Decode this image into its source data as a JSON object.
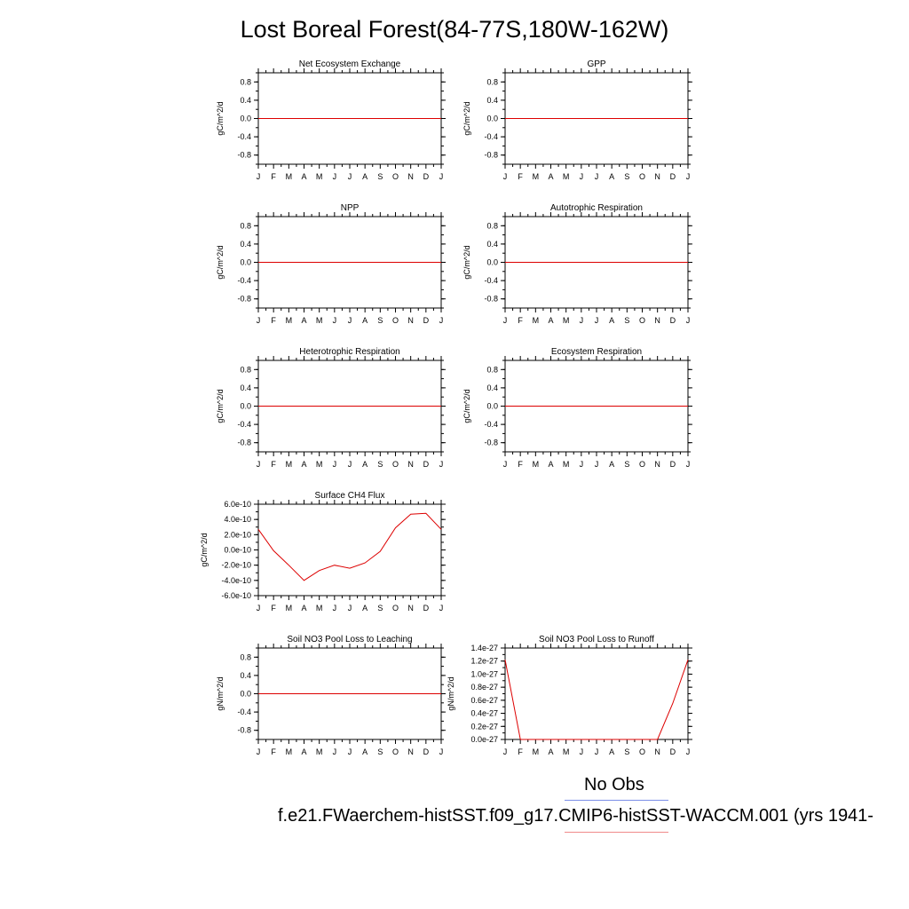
{
  "title": "Lost Boreal Forest(84-77S,180W-162W)",
  "month_labels": [
    "J",
    "F",
    "M",
    "A",
    "M",
    "J",
    "J",
    "A",
    "S",
    "O",
    "N",
    "D",
    "J"
  ],
  "legend": {
    "obs_label": "No Obs",
    "case_label": "f.e21.FWaerchem-histSST.f09_g17.CMIP6-histSST-WACCM.001 (yrs 1941-",
    "obs_color": "#7b8ee8",
    "case_color": "#f08a8a"
  },
  "chart_data": [
    {
      "type": "line",
      "title": "Net Ecosystem Exchange",
      "ylabel": "gC/m^2/d",
      "ylim": [
        -1.0,
        1.0
      ],
      "yticks": [
        "0.8",
        "0.4",
        "0.0",
        "-0.4",
        "-0.8"
      ],
      "series": [
        {
          "values": [
            0,
            0,
            0,
            0,
            0,
            0,
            0,
            0,
            0,
            0,
            0,
            0,
            0
          ],
          "color": "#dd0000"
        }
      ]
    },
    {
      "type": "line",
      "title": "GPP",
      "ylabel": "gC/m^2/d",
      "ylim": [
        -1.0,
        1.0
      ],
      "yticks": [
        "0.8",
        "0.4",
        "0.0",
        "-0.4",
        "-0.8"
      ],
      "series": [
        {
          "values": [
            0,
            0,
            0,
            0,
            0,
            0,
            0,
            0,
            0,
            0,
            0,
            0,
            0
          ],
          "color": "#dd0000"
        }
      ]
    },
    {
      "type": "line",
      "title": "NPP",
      "ylabel": "gC/m^2/d",
      "ylim": [
        -1.0,
        1.0
      ],
      "yticks": [
        "0.8",
        "0.4",
        "0.0",
        "-0.4",
        "-0.8"
      ],
      "series": [
        {
          "values": [
            0,
            0,
            0,
            0,
            0,
            0,
            0,
            0,
            0,
            0,
            0,
            0,
            0
          ],
          "color": "#dd0000"
        }
      ]
    },
    {
      "type": "line",
      "title": "Autotrophic Respiration",
      "ylabel": "gC/m^2/d",
      "ylim": [
        -1.0,
        1.0
      ],
      "yticks": [
        "0.8",
        "0.4",
        "0.0",
        "-0.4",
        "-0.8"
      ],
      "series": [
        {
          "values": [
            0,
            0,
            0,
            0,
            0,
            0,
            0,
            0,
            0,
            0,
            0,
            0,
            0
          ],
          "color": "#dd0000"
        }
      ]
    },
    {
      "type": "line",
      "title": "Heterotrophic Respiration",
      "ylabel": "gC/m^2/d",
      "ylim": [
        -1.0,
        1.0
      ],
      "yticks": [
        "0.8",
        "0.4",
        "0.0",
        "-0.4",
        "-0.8"
      ],
      "series": [
        {
          "values": [
            0,
            0,
            0,
            0,
            0,
            0,
            0,
            0,
            0,
            0,
            0,
            0,
            0
          ],
          "color": "#dd0000"
        }
      ]
    },
    {
      "type": "line",
      "title": "Ecosystem Respiration",
      "ylabel": "gC/m^2/d",
      "ylim": [
        -1.0,
        1.0
      ],
      "yticks": [
        "0.8",
        "0.4",
        "0.0",
        "-0.4",
        "-0.8"
      ],
      "series": [
        {
          "values": [
            0,
            0,
            0,
            0,
            0,
            0,
            0,
            0,
            0,
            0,
            0,
            0,
            0
          ],
          "color": "#dd0000"
        }
      ]
    },
    {
      "type": "line",
      "title": "Surface CH4 Flux",
      "ylabel": "gC/m^2/d",
      "ylim": [
        -6e-10,
        6e-10
      ],
      "yticks": [
        "6.0e-10",
        "4.0e-10",
        "2.0e-10",
        "0.0e-10",
        "-2.0e-10",
        "-4.0e-10",
        "-6.0e-10"
      ],
      "series": [
        {
          "values": [
            2.7e-10,
            -1e-11,
            -2e-10,
            -4e-10,
            -2.7e-10,
            -2e-10,
            -2.4e-10,
            -1.7e-10,
            -2e-11,
            2.9e-10,
            4.7e-10,
            4.8e-10,
            2.7e-10
          ],
          "color": "#dd0000"
        }
      ]
    },
    null,
    {
      "type": "line",
      "title": "Soil NO3 Pool Loss to Leaching",
      "ylabel": "gN/m^2/d",
      "ylim": [
        -1.0,
        1.0
      ],
      "yticks": [
        "0.8",
        "0.4",
        "0.0",
        "-0.4",
        "-0.8"
      ],
      "series": [
        {
          "values": [
            0,
            0,
            0,
            0,
            0,
            0,
            0,
            0,
            0,
            0,
            0,
            0,
            0
          ],
          "color": "#dd0000"
        }
      ]
    },
    {
      "type": "line",
      "title": "Soil NO3 Pool Loss to Runoff",
      "ylabel": "gN/m^2/d",
      "ylim": [
        0,
        1.4e-27
      ],
      "yticks": [
        "1.4e-27",
        "1.2e-27",
        "1.0e-27",
        "0.8e-27",
        "0.6e-27",
        "0.4e-27",
        "0.2e-27",
        "0.0e-27"
      ],
      "series": [
        {
          "values": [
            1.22e-27,
            0,
            0,
            0,
            0,
            0,
            0,
            0,
            0,
            0,
            0,
            5.5e-28,
            1.22e-27
          ],
          "color": "#dd0000"
        }
      ]
    }
  ]
}
